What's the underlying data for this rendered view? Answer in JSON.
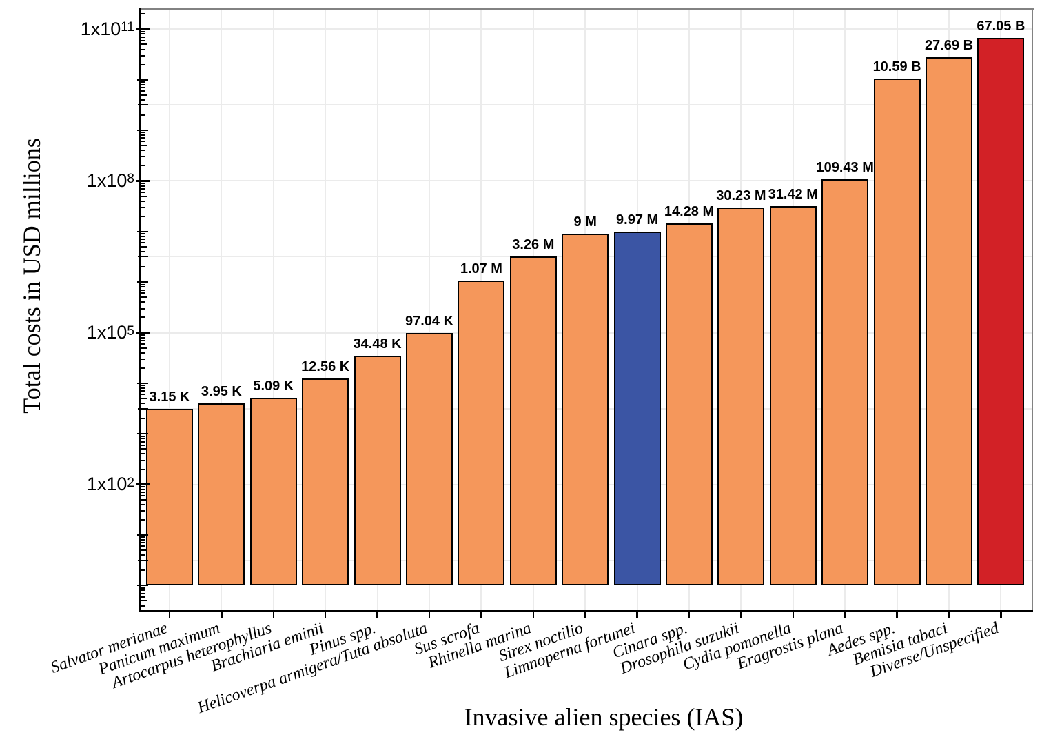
{
  "figure": {
    "y_axis_title": "Total costs in USD millions",
    "x_axis_title": "Invasive alien species (IAS)"
  },
  "chart_data": {
    "type": "bar",
    "title": "",
    "xlabel": "Invasive alien species (IAS)",
    "ylabel": "Total costs in USD millions",
    "yscale": "log10",
    "ylim_log10": [
      -0.5,
      11.4
    ],
    "bar_baseline_value": 1,
    "grid": true,
    "grid_major_log10_step": 1.5,
    "legend": null,
    "yticks": [
      {
        "base": "1x10",
        "exp": "2",
        "value": 100
      },
      {
        "base": "1x10",
        "exp": "5",
        "value": 100000
      },
      {
        "base": "1x10",
        "exp": "8",
        "value": 100000000
      },
      {
        "base": "1x10",
        "exp": "11",
        "value": 100000000000
      }
    ],
    "categories": [
      "Salvator merianae",
      "Panicum maximum",
      "Artocarpus heterophyllus",
      "Brachiaria eminii",
      "Pinus spp.",
      "Helicoverpa armigera/Tuta absoluta",
      "Sus scrofa",
      "Rhinella marina",
      "Sirex noctilio",
      "Limnoperna fortunei",
      "Cinara spp.",
      "Drosophila suzukii",
      "Cydia pomonella",
      "Eragrostis plana",
      "Aedes spp.",
      "Bemisia tabaci",
      "Diverse/Unspecified"
    ],
    "values": [
      3150,
      3950,
      5090,
      12560,
      34480,
      97040,
      1070000,
      3260000,
      9000000,
      9970000,
      14280000,
      30230000,
      31420000,
      109430000,
      10590000000,
      27690000000,
      67050000000
    ],
    "value_labels": [
      "3.15 K",
      "3.95 K",
      "5.09 K",
      "12.56 K",
      "34.48 K",
      "97.04 K",
      "1.07 M",
      "3.26 M",
      "9 M",
      "9.97 M",
      "14.28 M",
      "30.23 M",
      "31.42 M",
      "109.43 M",
      "10.59 B",
      "27.69 B",
      "67.05 B"
    ],
    "bar_color_keys": [
      "orange",
      "orange",
      "orange",
      "orange",
      "orange",
      "orange",
      "orange",
      "orange",
      "orange",
      "blue",
      "orange",
      "orange",
      "orange",
      "orange",
      "orange",
      "orange",
      "red"
    ],
    "colors": {
      "orange": "#F5975B",
      "blue": "#3B55A4",
      "red": "#D22126",
      "bar_border": "#000000",
      "grid_line": "#EBEBEB",
      "frame_gray": "#828282",
      "axis_black": "#000000",
      "text": "#000000"
    }
  }
}
